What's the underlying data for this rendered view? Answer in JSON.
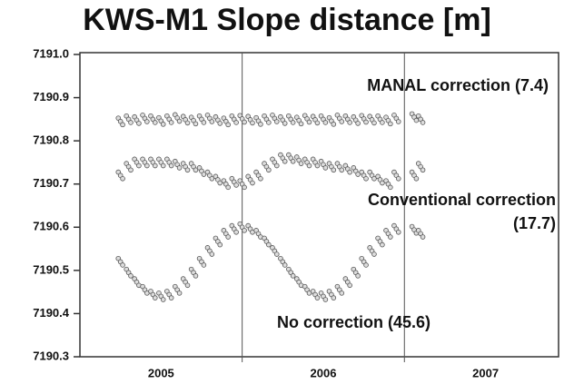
{
  "chart_data": {
    "type": "scatter",
    "title": "KWS-M1 Slope distance [m]",
    "xlim": [
      2005.0,
      2007.95
    ],
    "ylim": [
      7190.3,
      7191.0
    ],
    "xticks": [
      {
        "value": 2005.5,
        "label": "2005"
      },
      {
        "value": 2006.5,
        "label": "2006"
      },
      {
        "value": 2007.5,
        "label": "2007"
      }
    ],
    "xgrid": [
      2006,
      2007
    ],
    "yticks": [
      7190.3,
      7190.4,
      7190.5,
      7190.6,
      7190.7,
      7190.8,
      7190.9,
      {
        "value": 7191.0,
        "label": "7191.0"
      }
    ],
    "grid": true,
    "x": [
      2005.25,
      2005.3,
      2005.35,
      2005.4,
      2005.45,
      2005.5,
      2005.55,
      2005.6,
      2005.65,
      2005.7,
      2005.75,
      2005.8,
      2005.85,
      2005.9,
      2005.95,
      2006.0,
      2006.05,
      2006.1,
      2006.15,
      2006.2,
      2006.25,
      2006.3,
      2006.35,
      2006.4,
      2006.45,
      2006.5,
      2006.55,
      2006.6,
      2006.65,
      2006.7,
      2006.75,
      2006.8,
      2006.85,
      2006.9,
      2006.95,
      2007.06,
      2007.1
    ],
    "series": [
      {
        "color": "#555555",
        "values": [
          7190.845,
          7190.85,
          7190.848,
          7190.852,
          7190.85,
          7190.846,
          7190.85,
          7190.853,
          7190.849,
          7190.847,
          7190.85,
          7190.852,
          7190.848,
          7190.845,
          7190.85,
          7190.851,
          7190.849,
          7190.846,
          7190.85,
          7190.852,
          7190.848,
          7190.85,
          7190.847,
          7190.851,
          7190.849,
          7190.85,
          7190.846,
          7190.852,
          7190.85,
          7190.848,
          7190.851,
          7190.849,
          7190.85,
          7190.847,
          7190.852,
          7190.855,
          7190.85
        ]
      },
      {
        "color": "#555555",
        "values": [
          7190.72,
          7190.74,
          7190.75,
          7190.75,
          7190.75,
          7190.75,
          7190.75,
          7190.745,
          7190.74,
          7190.74,
          7190.73,
          7190.72,
          7190.71,
          7190.7,
          7190.705,
          7190.7,
          7190.71,
          7190.72,
          7190.74,
          7190.75,
          7190.76,
          7190.76,
          7190.755,
          7190.75,
          7190.75,
          7190.745,
          7190.74,
          7190.74,
          7190.735,
          7190.73,
          7190.72,
          7190.72,
          7190.71,
          7190.7,
          7190.72,
          7190.72,
          7190.74
        ]
      },
      {
        "color": "#555555",
        "values": [
          7190.52,
          7190.495,
          7190.473,
          7190.455,
          7190.444,
          7190.44,
          7190.444,
          7190.455,
          7190.473,
          7190.495,
          7190.52,
          7190.545,
          7190.567,
          7190.585,
          7190.596,
          7190.6,
          7190.596,
          7190.585,
          7190.567,
          7190.545,
          7190.52,
          7190.495,
          7190.473,
          7190.455,
          7190.444,
          7190.44,
          7190.444,
          7190.455,
          7190.473,
          7190.495,
          7190.52,
          7190.545,
          7190.567,
          7190.585,
          7190.596,
          7190.594,
          7190.585
        ]
      }
    ],
    "annotations": [
      "MANAL correction (7.4)",
      "Conventional correction",
      "(17.7)",
      "No correction (45.6)"
    ]
  }
}
